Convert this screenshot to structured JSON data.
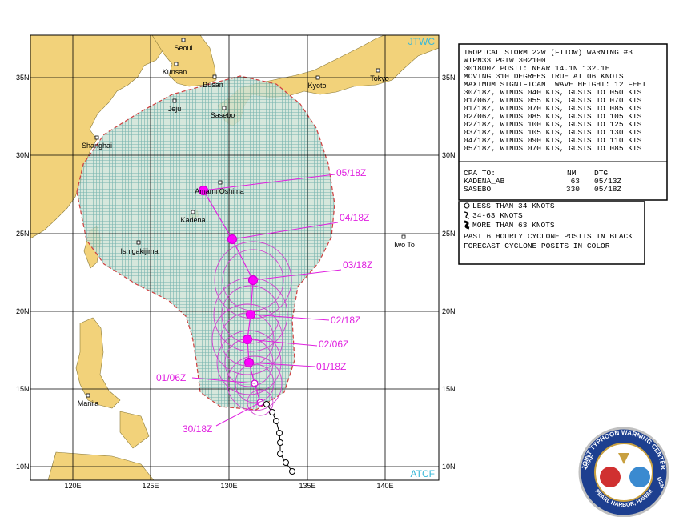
{
  "map": {
    "badges": {
      "top": "JTWC",
      "bottom": "ATCF"
    },
    "lat_labels": [
      "35N",
      "30N",
      "25N",
      "20N",
      "15N",
      "10N"
    ],
    "lon_labels": [
      "120E",
      "125E",
      "130E",
      "135E",
      "140E"
    ],
    "places": [
      "Seoul",
      "Kunsan",
      "Busan",
      "Kyoto",
      "Tokyo",
      "Jeju",
      "Sasebo",
      "Shanghai",
      "Amami Oshima",
      "Kadena",
      "Ishigakijima",
      "Iwo To",
      "Manila"
    ],
    "track_labels": [
      "05/18Z",
      "04/18Z",
      "03/18Z",
      "02/18Z",
      "02/06Z",
      "01/18Z",
      "01/06Z",
      "30/18Z"
    ]
  },
  "warning": {
    "lines": [
      "TROPICAL STORM 22W (FITOW) WARNING #3",
      "WTPN33 PGTW 302100",
      "301800Z POSIT: NEAR 14.1N 132.1E",
      "MOVING 310 DEGREES TRUE AT 06 KNOTS",
      "MAXIMUM SIGNIFICANT WAVE HEIGHT: 12 FEET",
      "30/18Z, WINDS 040 KTS, GUSTS TO 050 KTS",
      "01/06Z, WINDS 055 KTS, GUSTS TO 070 KTS",
      "01/18Z, WINDS 070 KTS, GUSTS TO 085 KTS",
      "02/06Z, WINDS 085 KTS, GUSTS TO 105 KTS",
      "02/18Z, WINDS 100 KTS, GUSTS TO 125 KTS",
      "03/18Z, WINDS 105 KTS, GUSTS TO 130 KTS",
      "04/18Z, WINDS 090 KTS, GUSTS TO 110 KTS",
      "05/18Z, WINDS 070 KTS, GUSTS TO 085 KTS"
    ]
  },
  "cpa": {
    "header": [
      "CPA TO:",
      "NM",
      "DTG"
    ],
    "rows": [
      [
        "KADENA_AB",
        "63",
        "05/13Z"
      ],
      [
        "SASEBO",
        "330",
        "05/18Z"
      ]
    ]
  },
  "legend": {
    "items": [
      "LESS THAN 34 KNOTS",
      "34-63 KNOTS",
      "MORE THAN 63 KNOTS"
    ],
    "notes": [
      "PAST 6 HOURLY CYCLONE POSITS IN BLACK",
      "FORECAST CYCLONE POSITS IN COLOR"
    ]
  },
  "seal": {
    "top": "USAF",
    "ring": "JOINT TYPHOON WARNING CENTER",
    "bottom": "PEARL HARBOR, HAWAII",
    "right": "USN"
  }
}
